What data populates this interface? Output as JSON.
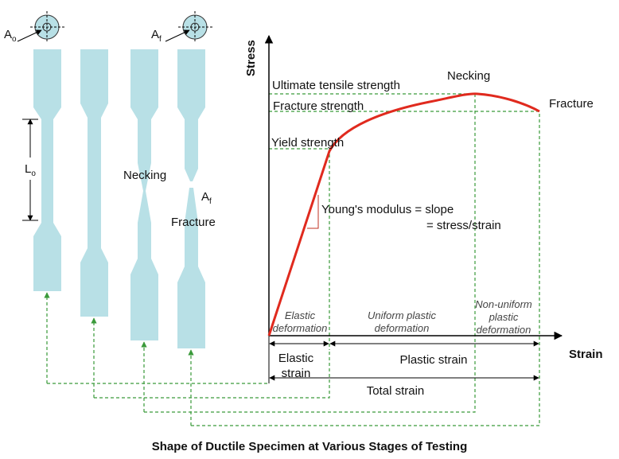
{
  "specimen": {
    "area_original": {
      "symbol": "A",
      "subscript": "o"
    },
    "area_final": {
      "symbol": "A",
      "subscript": "f"
    },
    "gauge_length": {
      "symbol": "L",
      "subscript": "o"
    },
    "necking": "Necking",
    "fracture_area": {
      "symbol": "A",
      "subscript": "f"
    },
    "fracture": "Fracture"
  },
  "graph": {
    "y_axis": "Stress",
    "x_axis": "Strain",
    "ultimate_tensile_strength": "Ultimate tensile strength",
    "fracture_strength": "Fracture strength",
    "yield_strength": "Yield strength",
    "necking": "Necking",
    "fracture": "Fracture",
    "youngs_modulus": [
      "Young's modulus = slope",
      "= stress/strain"
    ],
    "regions": [
      [
        "Elastic",
        "deformation"
      ],
      [
        "Uniform plastic",
        "deformation"
      ],
      [
        "Non-uniform",
        "plastic",
        "deformation"
      ]
    ],
    "strains": {
      "elastic": [
        "Elastic",
        "strain"
      ],
      "plastic": "Plastic strain",
      "total": "Total strain"
    }
  },
  "caption": "Shape of Ductile Specimen at Various Stages of Testing"
}
